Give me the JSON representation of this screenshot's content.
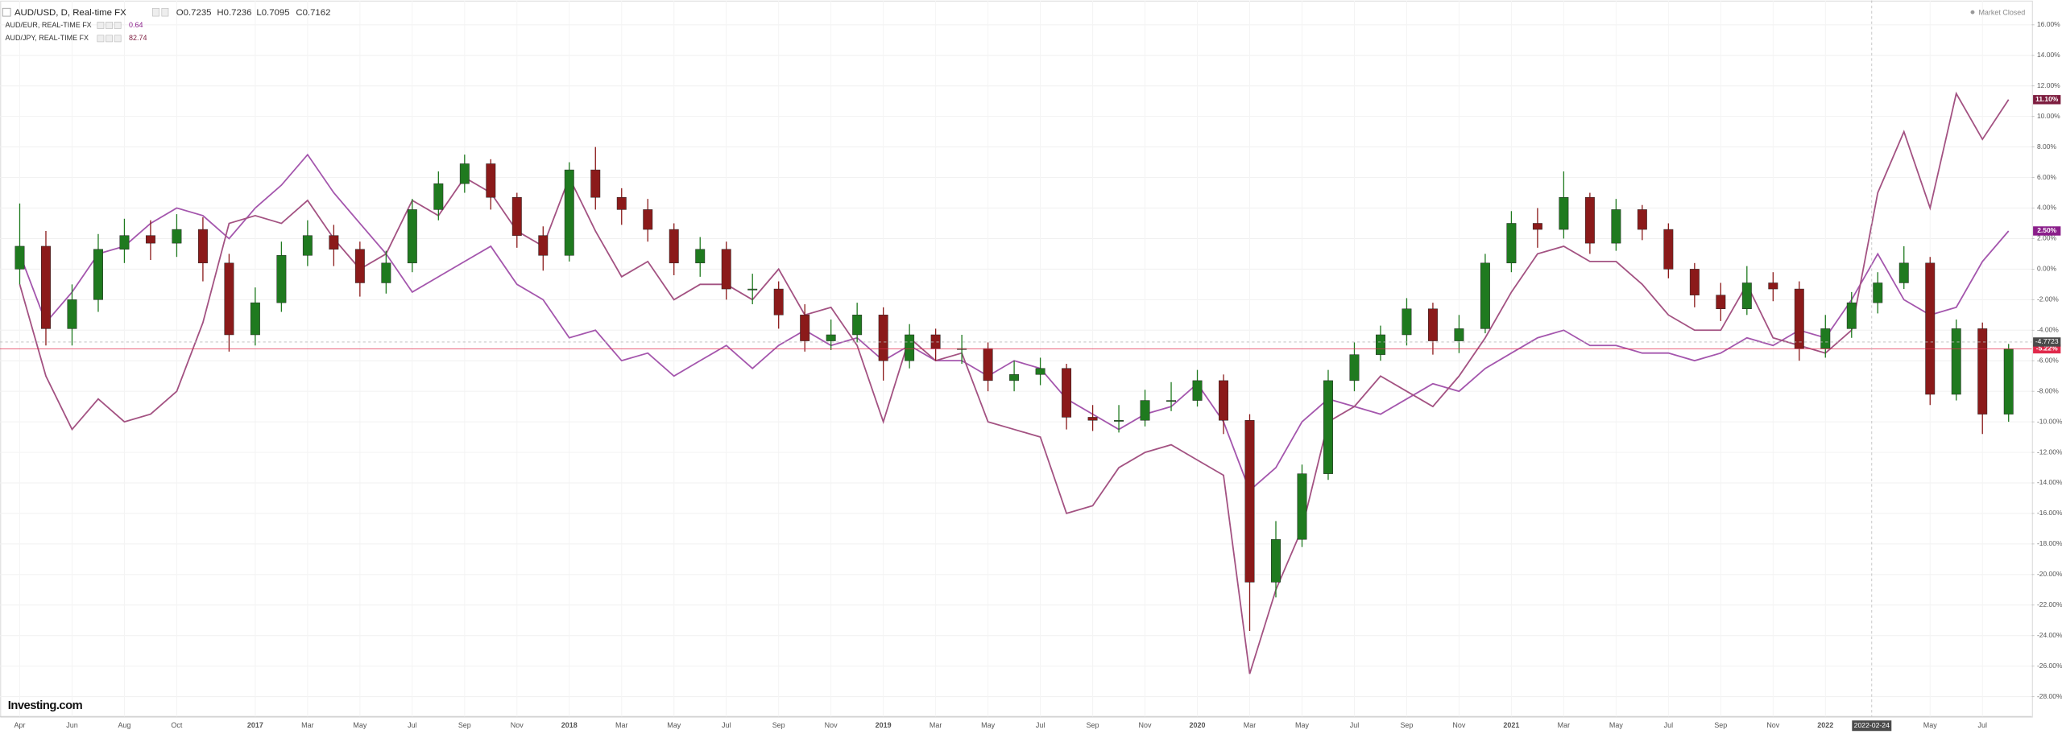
{
  "header": {
    "symbol": "AUD/USD, D, Real-time FX",
    "ohlc": [
      "O0.7235",
      "H0.7236",
      "L0.7095",
      "C0.7162"
    ],
    "status": "Market Closed",
    "logo": "Investing.com"
  },
  "chart_data": {
    "type": "candlestick",
    "categories": [
      "Apr",
      null,
      "Jun",
      null,
      "Aug",
      null,
      "Oct",
      null,
      null,
      "2017",
      null,
      "Mar",
      null,
      "May",
      null,
      "Jul",
      null,
      "Sep",
      null,
      "Nov",
      null,
      "2018",
      null,
      "Mar",
      null,
      "May",
      null,
      "Jul",
      null,
      "Sep",
      null,
      "Nov",
      null,
      "2019",
      null,
      "Mar",
      null,
      "May",
      null,
      "Jul",
      null,
      "Sep",
      null,
      "Nov",
      null,
      "2020",
      null,
      "Mar",
      null,
      "May",
      null,
      "Jul",
      null,
      "Sep",
      null,
      "Nov",
      null,
      "2021",
      null,
      "Mar",
      null,
      "May",
      null,
      "Jul",
      null,
      "Sep",
      null,
      "Nov",
      null,
      "2022",
      null,
      null,
      null,
      "May",
      null,
      "Jul",
      null
    ],
    "ylim": [
      -29.3,
      17.6
    ],
    "yticks": [
      {
        "value": 16,
        "label": "16.00%"
      },
      {
        "value": 14,
        "label": "14.00%"
      },
      {
        "value": 12,
        "label": "12.00%"
      },
      {
        "value": 10,
        "label": "10.00%"
      },
      {
        "value": 8,
        "label": "8.00%"
      },
      {
        "value": 6,
        "label": "6.00%"
      },
      {
        "value": 4,
        "label": "4.00%"
      },
      {
        "value": 2,
        "label": "2.00%"
      },
      {
        "value": 0,
        "label": "0.00%"
      },
      {
        "value": -2,
        "label": "-2.00%"
      },
      {
        "value": -4,
        "label": "-4.00%"
      },
      {
        "value": -6,
        "label": "-6.00%"
      },
      {
        "value": -8,
        "label": "-8.00%"
      },
      {
        "value": -10,
        "label": "-10.00%"
      },
      {
        "value": -12,
        "label": "-12.00%"
      },
      {
        "value": -14,
        "label": "-14.00%"
      },
      {
        "value": -16,
        "label": "-16.00%"
      },
      {
        "value": -18,
        "label": "-18.00%"
      },
      {
        "value": -20,
        "label": "-20.00%"
      },
      {
        "value": -22,
        "label": "-22.00%"
      },
      {
        "value": -24,
        "label": "-24.00%"
      },
      {
        "value": -26,
        "label": "-26.00%"
      },
      {
        "value": -28,
        "label": "-28.00%"
      }
    ],
    "grid": true,
    "crosshair": {
      "x_label": "2022-02-24",
      "y": -4.7723
    },
    "series": [
      {
        "type": "candlestick",
        "up_color": "#1f7a1f",
        "down_color": "#8b1a1a",
        "last_color": "#e0284a",
        "last_label": "-5.22%",
        "open": [
          0.0,
          1.5,
          -3.9,
          -2.0,
          1.3,
          2.2,
          1.7,
          2.6,
          0.4,
          -4.3,
          -2.2,
          0.9,
          2.2,
          1.3,
          -0.9,
          0.4,
          3.9,
          5.6,
          6.9,
          4.7,
          2.2,
          0.9,
          6.5,
          4.7,
          3.9,
          2.6,
          0.4,
          1.3,
          -1.3,
          -1.3,
          -3.0,
          -4.7,
          -4.3,
          -3.0,
          -6.0,
          -4.3,
          -5.2,
          -5.2,
          -7.3,
          -6.9,
          -6.5,
          -9.7,
          -9.9,
          -9.9,
          -8.6,
          -8.6,
          -7.3,
          -9.9,
          -20.5,
          -17.7,
          -13.4,
          -7.3,
          -5.6,
          -4.3,
          -2.6,
          -4.7,
          -3.9,
          0.4,
          3.0,
          2.6,
          4.7,
          1.7,
          3.9,
          2.6,
          0.0,
          -1.7,
          -2.6,
          -0.9,
          -1.3,
          -5.2,
          -3.9,
          -2.2,
          -0.9,
          0.4,
          -8.2,
          -3.9,
          -9.5
        ],
        "high": [
          4.3,
          2.5,
          -1.0,
          2.3,
          3.3,
          3.2,
          3.6,
          3.4,
          1.0,
          -1.2,
          1.8,
          3.2,
          2.9,
          1.8,
          1.2,
          4.6,
          6.4,
          7.5,
          7.2,
          5.0,
          2.8,
          7.0,
          8.0,
          5.3,
          4.6,
          3.0,
          2.1,
          1.8,
          -0.3,
          -0.8,
          -2.3,
          -3.3,
          -2.2,
          -2.5,
          -3.6,
          -3.9,
          -4.3,
          -4.8,
          -6.0,
          -5.8,
          -6.2,
          -8.9,
          -8.9,
          -7.9,
          -7.4,
          -6.6,
          -6.9,
          -9.5,
          -16.5,
          -12.8,
          -6.6,
          -4.8,
          -3.7,
          -1.9,
          -2.2,
          -3.0,
          1.0,
          3.8,
          4.0,
          6.4,
          5.0,
          4.6,
          4.2,
          3.0,
          0.4,
          -0.9,
          0.2,
          -0.2,
          -0.8,
          -3.0,
          -1.5,
          -0.2,
          1.5,
          0.8,
          -3.3,
          -3.5,
          -4.9
        ],
        "low": [
          -1.0,
          -5.0,
          -5.0,
          -2.8,
          0.4,
          0.6,
          0.8,
          -0.8,
          -5.4,
          -5.0,
          -2.8,
          0.2,
          0.2,
          -1.8,
          -1.6,
          -0.2,
          3.2,
          5.0,
          3.9,
          1.4,
          -0.1,
          0.5,
          3.9,
          2.9,
          1.8,
          -0.4,
          -0.5,
          -2.0,
          -2.3,
          -3.9,
          -5.4,
          -5.3,
          -4.8,
          -7.3,
          -6.5,
          -6.0,
          -6.2,
          -8.0,
          -8.0,
          -7.6,
          -10.5,
          -10.6,
          -10.7,
          -10.3,
          -9.3,
          -9.0,
          -10.8,
          -23.7,
          -21.5,
          -18.2,
          -13.8,
          -8.0,
          -6.0,
          -5.0,
          -5.6,
          -5.5,
          -4.2,
          -0.2,
          1.4,
          2.0,
          1.0,
          1.2,
          1.9,
          -0.6,
          -2.5,
          -3.4,
          -3.0,
          -2.1,
          -6.0,
          -5.8,
          -4.5,
          -2.9,
          -1.3,
          -8.9,
          -8.6,
          -10.8,
          -10.0
        ],
        "close": [
          1.5,
          -3.9,
          -2.0,
          1.3,
          2.2,
          1.7,
          2.6,
          0.4,
          -4.3,
          -2.2,
          0.9,
          2.2,
          1.3,
          -0.9,
          0.4,
          3.9,
          5.6,
          6.9,
          4.7,
          2.2,
          0.9,
          6.5,
          4.7,
          3.9,
          2.6,
          0.4,
          1.3,
          -1.3,
          -1.3,
          -3.0,
          -4.7,
          -4.3,
          -3.0,
          -6.0,
          -4.3,
          -5.2,
          -5.2,
          -7.3,
          -6.9,
          -6.5,
          -9.7,
          -9.9,
          -9.9,
          -8.6,
          -8.6,
          -7.3,
          -9.9,
          -20.5,
          -17.7,
          -13.4,
          -7.3,
          -5.6,
          -4.3,
          -2.6,
          -4.7,
          -3.9,
          0.4,
          3.0,
          2.6,
          4.7,
          1.7,
          3.9,
          2.6,
          0.0,
          -1.7,
          -2.6,
          -0.9,
          -1.3,
          -5.2,
          -3.9,
          -2.2,
          -0.9,
          0.4,
          -8.2,
          -3.9,
          -9.5,
          -5.22
        ]
      },
      {
        "type": "line",
        "name": "AUD/EUR, REAL-TIME FX",
        "quote": "0.64",
        "color": "#a456ad",
        "last_color": "#8a1e8a",
        "last_label": "2.50%",
        "values": [
          1.0,
          -3.5,
          -1.5,
          1.0,
          1.5,
          3.0,
          4.0,
          3.5,
          2.0,
          4.0,
          5.5,
          7.5,
          5.0,
          3.0,
          1.0,
          -1.5,
          -0.5,
          0.5,
          1.5,
          -1.0,
          -2.0,
          -4.5,
          -4.0,
          -6.0,
          -5.5,
          -7.0,
          -6.0,
          -5.0,
          -6.5,
          -5.0,
          -4.0,
          -5.0,
          -4.5,
          -6.0,
          -5.0,
          -6.0,
          -6.0,
          -7.0,
          -6.0,
          -6.5,
          -8.5,
          -9.5,
          -10.5,
          -9.5,
          -9.0,
          -7.5,
          -10.0,
          -14.5,
          -13.0,
          -10.0,
          -8.5,
          -9.0,
          -9.5,
          -8.5,
          -7.5,
          -8.0,
          -6.5,
          -5.5,
          -4.5,
          -4.0,
          -5.0,
          -5.0,
          -5.5,
          -5.5,
          -6.0,
          -5.5,
          -4.5,
          -5.0,
          -4.0,
          -4.5,
          -2.0,
          1.0,
          -2.0,
          -3.0,
          -2.5,
          0.5,
          2.5
        ]
      },
      {
        "type": "line",
        "name": "AUD/JPY, REAL-TIME FX",
        "quote": "82.74",
        "color": "#a35282",
        "last_color": "#7d1d3f",
        "last_label": "11.10%",
        "values": [
          -1.0,
          -7.0,
          -10.5,
          -8.5,
          -10.0,
          -9.5,
          -8.0,
          -3.5,
          3.0,
          3.5,
          3.0,
          4.5,
          2.0,
          0.0,
          1.0,
          4.5,
          3.5,
          6.0,
          5.0,
          2.5,
          1.5,
          6.0,
          2.5,
          -0.5,
          0.5,
          -2.0,
          -1.0,
          -1.0,
          -2.0,
          0.0,
          -3.0,
          -2.5,
          -5.0,
          -10.0,
          -4.5,
          -6.0,
          -5.5,
          -10.0,
          -10.5,
          -11.0,
          -16.0,
          -15.5,
          -13.0,
          -12.0,
          -11.5,
          -12.5,
          -13.5,
          -26.5,
          -21.0,
          -17.0,
          -10.0,
          -9.0,
          -7.0,
          -8.0,
          -9.0,
          -7.0,
          -4.5,
          -1.5,
          1.0,
          1.5,
          0.5,
          0.5,
          -1.0,
          -3.0,
          -4.0,
          -4.0,
          -1.0,
          -4.5,
          -5.0,
          -5.5,
          -4.0,
          5.0,
          9.0,
          4.0,
          11.5,
          8.5,
          11.1
        ]
      }
    ]
  }
}
